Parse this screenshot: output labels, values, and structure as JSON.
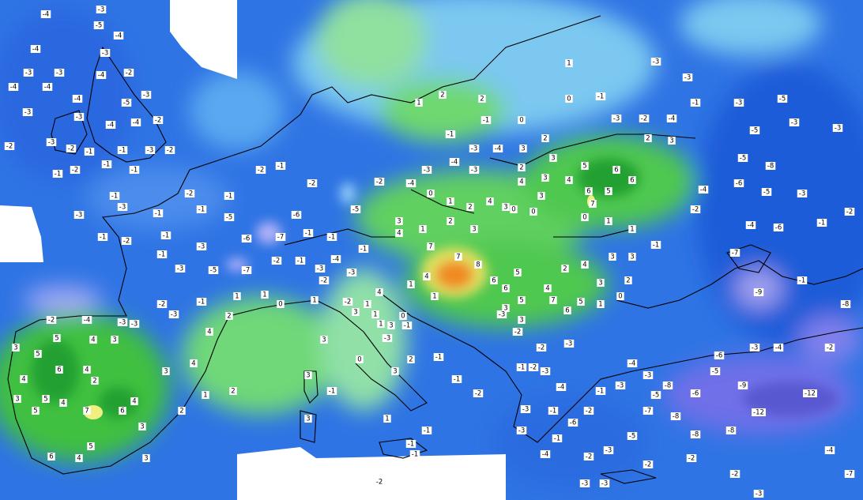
{
  "labels": [
    -4,
    -3,
    -5,
    -4,
    -4,
    -3,
    -3,
    -4,
    -3,
    -4,
    -4,
    -2,
    -4,
    -5,
    -3,
    -3,
    -3,
    -4,
    -4,
    -2,
    -2,
    -3,
    -2,
    -1,
    -1,
    -3,
    -2,
    -1,
    -2,
    -1,
    -1,
    -2,
    -1,
    -2,
    -1,
    -2,
    -1,
    -3,
    -3,
    -1,
    -2,
    -1,
    -1,
    -5,
    -6,
    -5,
    -6,
    -1,
    -3,
    -1,
    -5,
    -7,
    -3,
    -7,
    -1,
    -1,
    -2,
    -1,
    -3,
    -4,
    -3,
    -2,
    -1,
    -2,
    -4,
    -3,
    -4,
    -3,
    0,
    1,
    2,
    4,
    3,
    3,
    4,
    1,
    2,
    3,
    0,
    0,
    7,
    7,
    8,
    4,
    1,
    1,
    6,
    5,
    6,
    5,
    4,
    2,
    4,
    7,
    6,
    5,
    1,
    0,
    3,
    3,
    1,
    2,
    2,
    1,
    -3,
    0,
    -1,
    0,
    -1,
    -1,
    -3,
    -4,
    3,
    2,
    -2,
    -3,
    -4,
    5,
    6,
    6,
    5,
    6,
    7,
    2,
    3,
    3,
    4,
    2,
    3,
    4,
    3,
    0,
    1,
    1,
    -1,
    3,
    3,
    3,
    2,
    -3,
    -1,
    -3,
    -5,
    -5,
    -3,
    -3,
    -5,
    -8,
    -6,
    -5,
    -3,
    -4,
    -6,
    -1,
    -2,
    -4,
    -2,
    -7,
    -9,
    -1,
    -8,
    -2,
    -4,
    -3,
    -6,
    -5,
    -9,
    -12,
    -12,
    -6,
    -8,
    -8,
    -8,
    -7,
    -2,
    -2,
    -4,
    -7,
    -3,
    5,
    3,
    5,
    4,
    3,
    6,
    4,
    4,
    2,
    5,
    3,
    4,
    7,
    6,
    5,
    4,
    3,
    4,
    4,
    2,
    2,
    3,
    5,
    4,
    6,
    3,
    1,
    1,
    -1,
    -3,
    -2,
    -3,
    -4,
    -2,
    -3,
    0,
    1,
    -2,
    1,
    4,
    3,
    1,
    1,
    3,
    0,
    -1,
    -3,
    3,
    0,
    2,
    -1,
    3,
    1,
    -1,
    -1,
    -2,
    -1,
    2,
    1,
    3,
    -1,
    3,
    -2,
    -1,
    -3,
    -2,
    -2,
    -3,
    -3,
    -4,
    -1,
    -3,
    -1,
    -6,
    -2,
    -1,
    -3,
    -2,
    -3,
    -5,
    -4,
    -3,
    -3,
    -2,
    -3,
    -2,
    -1,
    -4,
    -3,
    -5,
    -8
  ]
}
